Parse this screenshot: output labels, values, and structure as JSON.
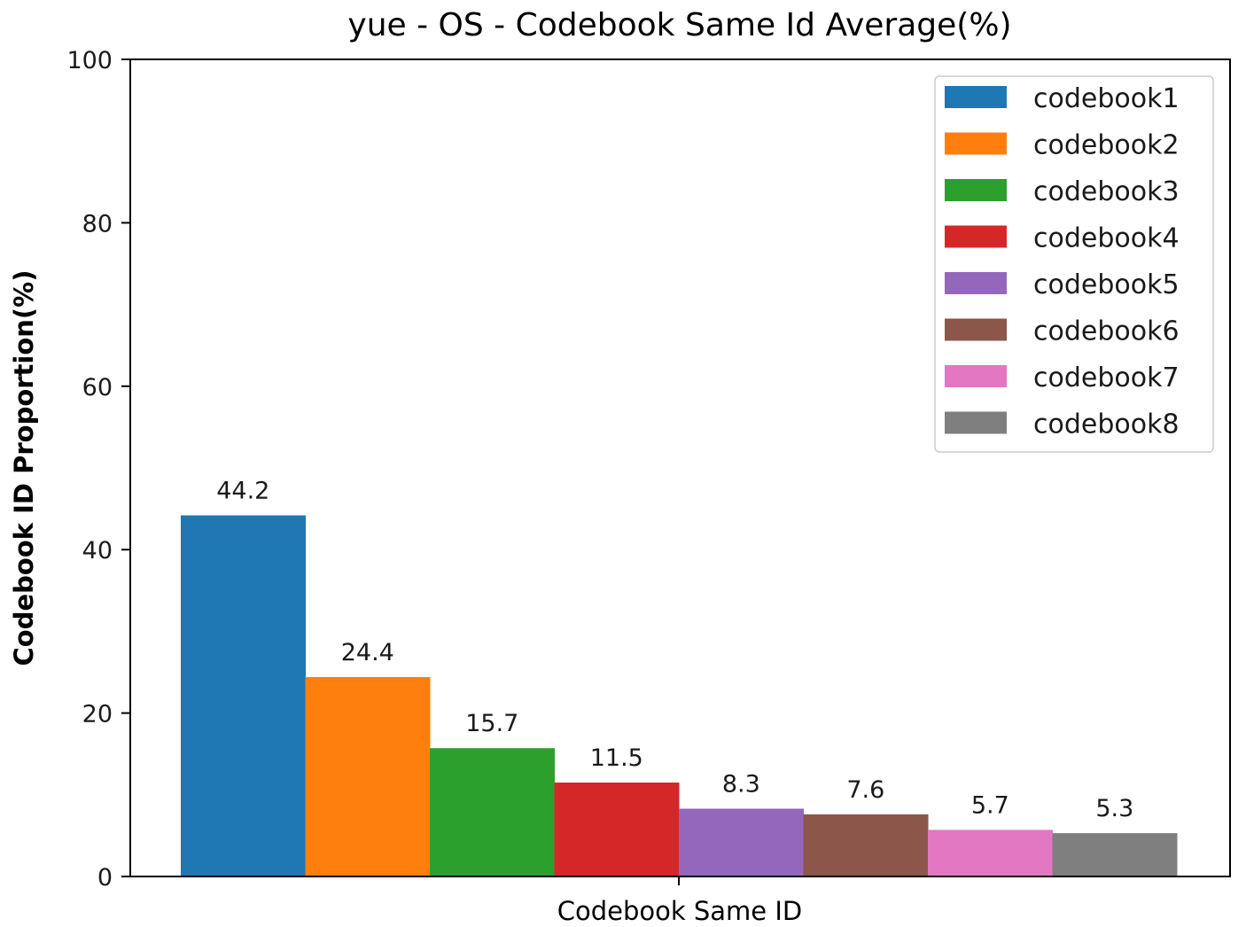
{
  "chart_data": {
    "type": "bar",
    "title": "yue - OS - Codebook Same Id Average(%)",
    "xlabel": "Codebook Same ID",
    "ylabel": "Codebook ID Proportion(%)",
    "ylim": [
      0,
      100
    ],
    "yticks": [
      "0",
      "20",
      "40",
      "60",
      "80",
      "100"
    ],
    "grid": false,
    "legend_position": "top-right",
    "series": [
      {
        "name": "codebook1",
        "value": 44.2,
        "label": "44.2",
        "color": "#1f77b4"
      },
      {
        "name": "codebook2",
        "value": 24.4,
        "label": "24.4",
        "color": "#ff7f0e"
      },
      {
        "name": "codebook3",
        "value": 15.7,
        "label": "15.7",
        "color": "#2ca02c"
      },
      {
        "name": "codebook4",
        "value": 11.5,
        "label": "11.5",
        "color": "#d62728"
      },
      {
        "name": "codebook5",
        "value": 8.3,
        "label": "8.3",
        "color": "#9467bd"
      },
      {
        "name": "codebook6",
        "value": 7.6,
        "label": "7.6",
        "color": "#8c564b"
      },
      {
        "name": "codebook7",
        "value": 5.7,
        "label": "5.7",
        "color": "#e377c2"
      },
      {
        "name": "codebook8",
        "value": 5.3,
        "label": "5.3",
        "color": "#7f7f7f"
      }
    ]
  }
}
